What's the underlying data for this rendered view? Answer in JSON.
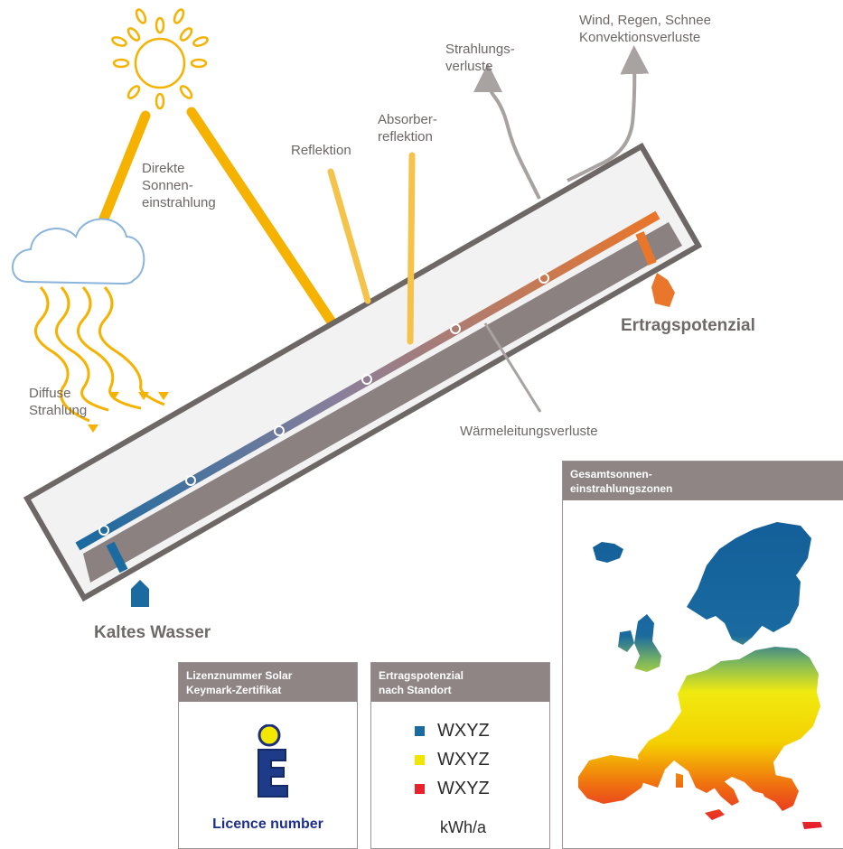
{
  "labels": {
    "wind": "Wind, Regen, Schnee\nKonvektionsverluste",
    "strahlungsverluste": "Strahlungs-\nverluste",
    "absorberreflektion": "Absorber-\nreflektion",
    "reflektion": "Reflektion",
    "direkte": "Direkte\nSonnen-\neinstrahlung",
    "diffuse": "Diffuse\nStrahlung",
    "waermeleitung": "Wärmeleitungsverluste",
    "ertragspotenzial": "Ertragspotenzial",
    "kaltes_wasser": "Kaltes Wasser"
  },
  "panels": {
    "map_title": "Gesamtsonnen-\neinstrahlungszonen",
    "license_title": "Lizenznummer Solar\nKeymark-Zertifikat",
    "license_text": "Licence number",
    "yield_title": "Ertragspotenzial\nnach Standort",
    "legend": [
      {
        "label": "WXYZ",
        "color": "#1b6aa0"
      },
      {
        "label": "WXYZ",
        "color": "#f2e600"
      },
      {
        "label": "WXYZ",
        "color": "#e8212a"
      }
    ],
    "unit": "kWh/a"
  },
  "colors": {
    "sun": "#f5b200",
    "frame": "#6d6766",
    "cold": "#1b6aa0",
    "hot": "#e9762a",
    "loss_arrow": "#a8a2a1"
  }
}
